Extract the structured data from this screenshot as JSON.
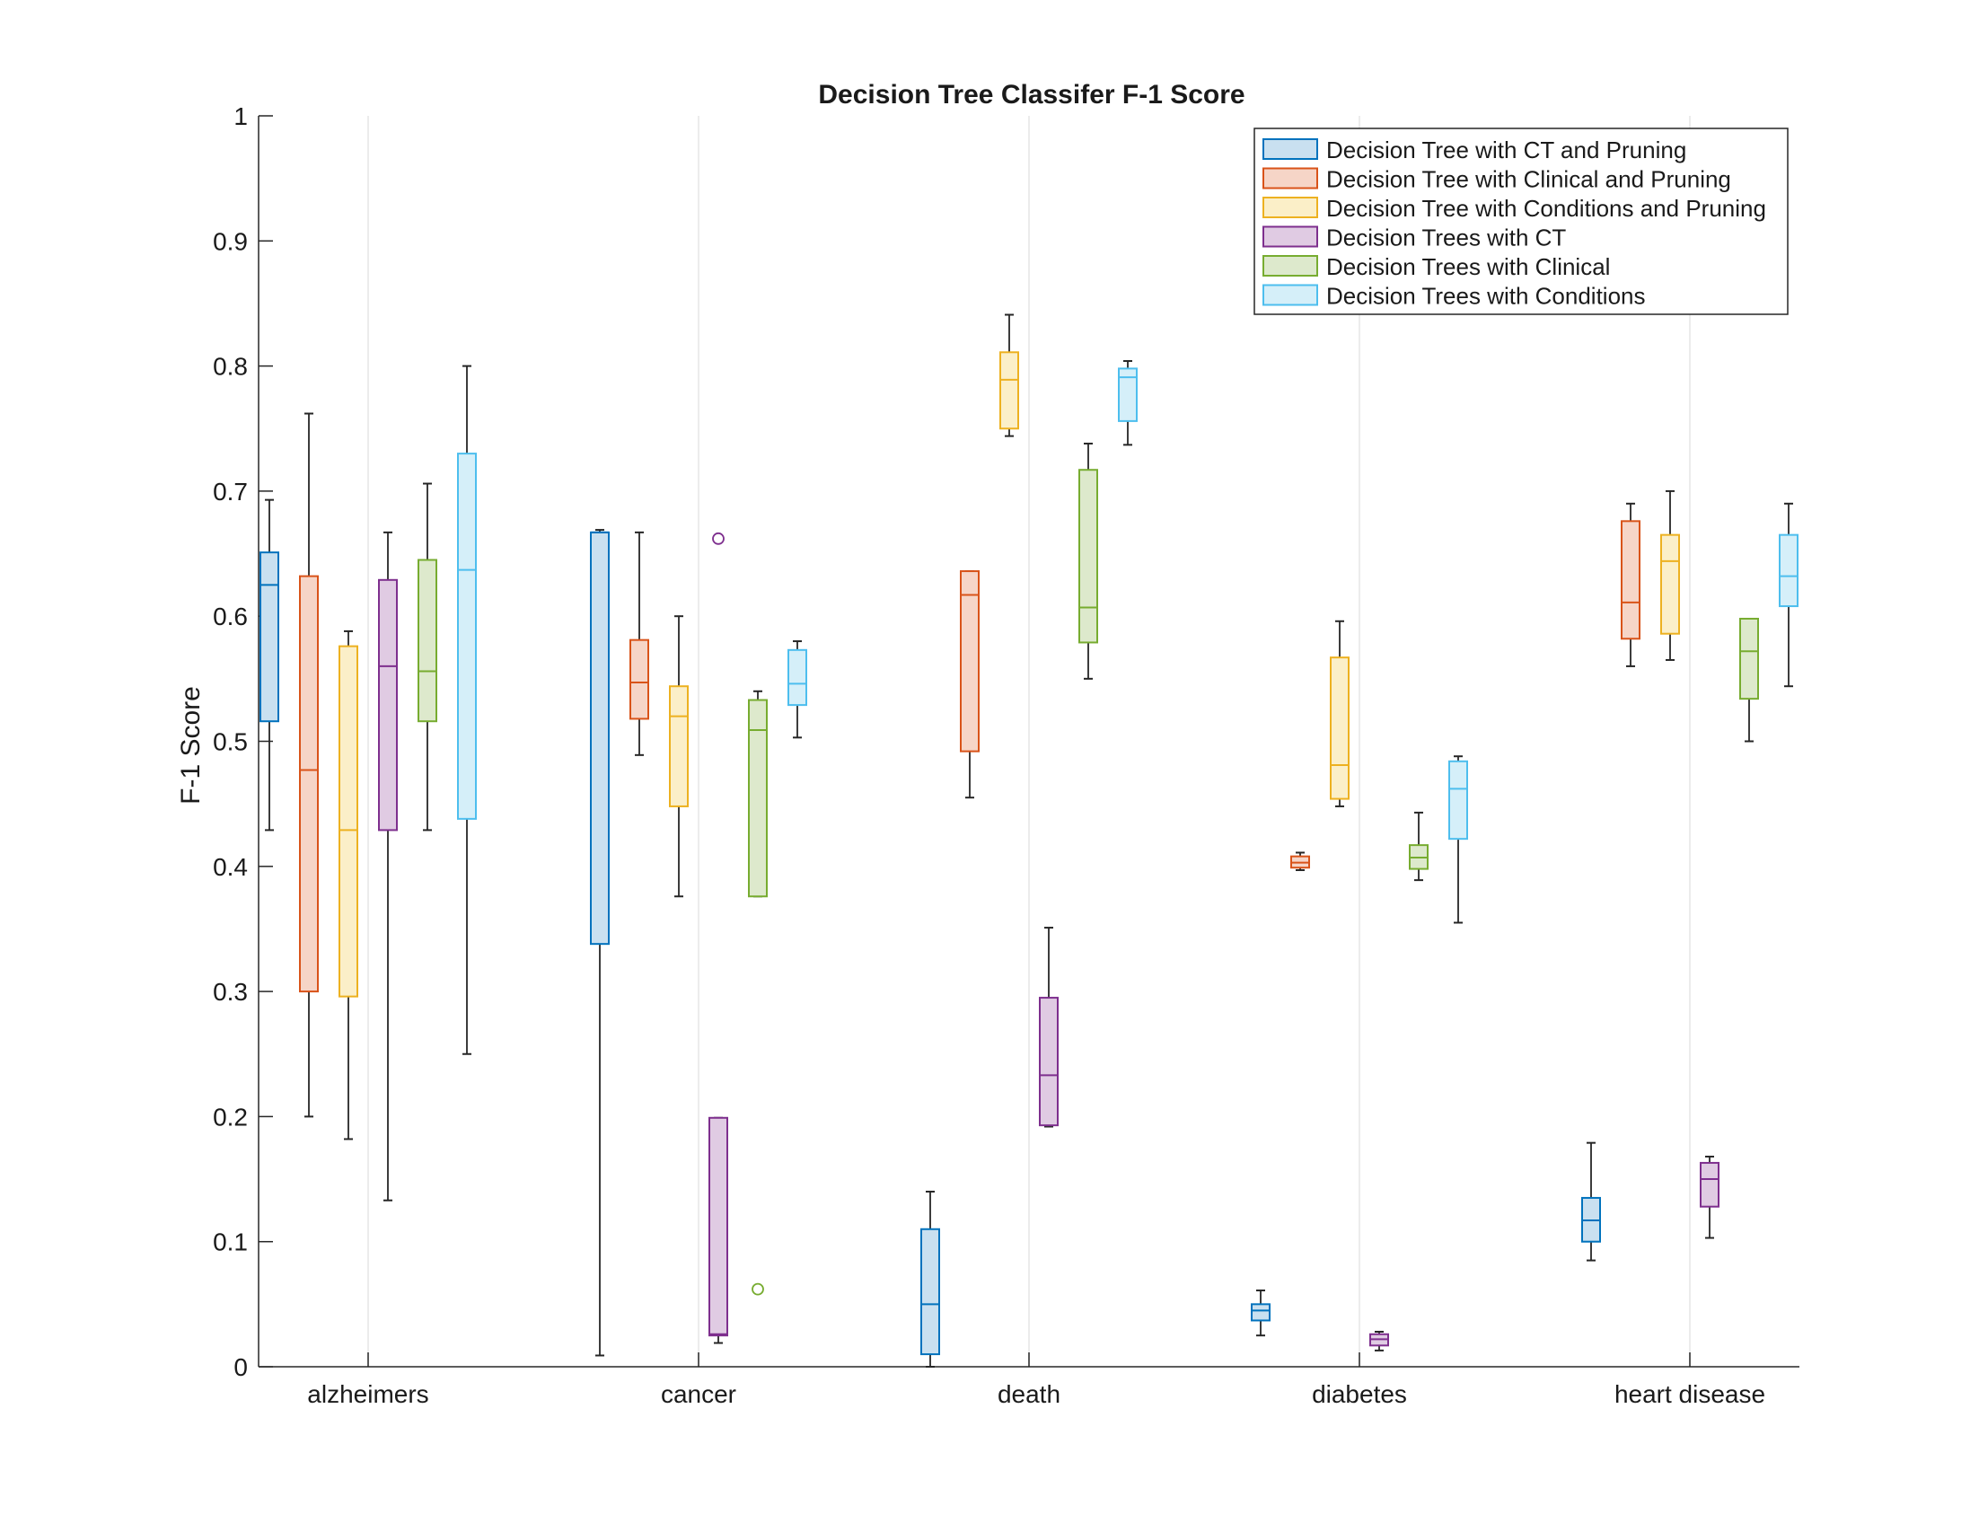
{
  "chart_data": {
    "type": "boxplot",
    "title": "Decision Tree Classifer F-1 Score",
    "xlabel": "",
    "ylabel": "F-1 Score",
    "ylim": [
      0,
      1
    ],
    "yticks": [
      0,
      0.1,
      0.2,
      0.3,
      0.4,
      0.5,
      0.6,
      0.7,
      0.8,
      0.9,
      1
    ],
    "ytick_labels": [
      "0",
      "0.1",
      "0.2",
      "0.3",
      "0.4",
      "0.5",
      "0.6",
      "0.7",
      "0.8",
      "0.9",
      "1"
    ],
    "categories": [
      "alzheimers",
      "cancer",
      "death",
      "diabetes",
      "heart disease"
    ],
    "grid": "vertical",
    "legend_position": "top-right",
    "series": [
      {
        "name": "Decision Tree with CT and Pruning",
        "color": "#0072BD",
        "fill": "#c9e0f0",
        "boxes": [
          {
            "min": 0.429,
            "q1": 0.516,
            "median": 0.625,
            "q3": 0.651,
            "max": 0.693,
            "outliers": []
          },
          {
            "min": 0.009,
            "q1": 0.338,
            "median": 0.667,
            "q3": 0.667,
            "max": 0.669,
            "outliers": []
          },
          {
            "min": 0.0,
            "q1": 0.01,
            "median": 0.05,
            "q3": 0.11,
            "max": 0.14,
            "outliers": []
          },
          {
            "min": 0.025,
            "q1": 0.037,
            "median": 0.045,
            "q3": 0.05,
            "max": 0.061,
            "outliers": []
          },
          {
            "min": 0.085,
            "q1": 0.1,
            "median": 0.117,
            "q3": 0.135,
            "max": 0.179,
            "outliers": []
          }
        ]
      },
      {
        "name": "Decision Tree with Clinical and Pruning",
        "color": "#D95319",
        "fill": "#f6d5c7",
        "boxes": [
          {
            "min": 0.2,
            "q1": 0.3,
            "median": 0.477,
            "q3": 0.632,
            "max": 0.762,
            "outliers": []
          },
          {
            "min": 0.489,
            "q1": 0.518,
            "median": 0.547,
            "q3": 0.581,
            "max": 0.667,
            "outliers": []
          },
          {
            "min": 0.455,
            "q1": 0.492,
            "median": 0.617,
            "q3": 0.636,
            "max": 0.636,
            "outliers": []
          },
          {
            "min": 0.397,
            "q1": 0.399,
            "median": 0.403,
            "q3": 0.408,
            "max": 0.411,
            "outliers": []
          },
          {
            "min": 0.56,
            "q1": 0.582,
            "median": 0.611,
            "q3": 0.676,
            "max": 0.69,
            "outliers": []
          }
        ]
      },
      {
        "name": "Decision Tree with Conditions and Pruning",
        "color": "#EDB120",
        "fill": "#fbefc8",
        "boxes": [
          {
            "min": 0.182,
            "q1": 0.296,
            "median": 0.429,
            "q3": 0.576,
            "max": 0.588,
            "outliers": []
          },
          {
            "min": 0.376,
            "q1": 0.448,
            "median": 0.52,
            "q3": 0.544,
            "max": 0.6,
            "outliers": []
          },
          {
            "min": 0.744,
            "q1": 0.75,
            "median": 0.789,
            "q3": 0.811,
            "max": 0.841,
            "outliers": []
          },
          {
            "min": 0.448,
            "q1": 0.454,
            "median": 0.481,
            "q3": 0.567,
            "max": 0.596,
            "outliers": []
          },
          {
            "min": 0.565,
            "q1": 0.586,
            "median": 0.644,
            "q3": 0.665,
            "max": 0.7,
            "outliers": []
          }
        ]
      },
      {
        "name": "Decision Trees with CT",
        "color": "#7E2F8E",
        "fill": "#e0cbe3",
        "boxes": [
          {
            "min": 0.133,
            "q1": 0.429,
            "median": 0.56,
            "q3": 0.629,
            "max": 0.667,
            "outliers": []
          },
          {
            "min": 0.019,
            "q1": 0.025,
            "median": 0.026,
            "q3": 0.199,
            "max": 0.199,
            "outliers": [
              0.662
            ]
          },
          {
            "min": 0.192,
            "q1": 0.193,
            "median": 0.233,
            "q3": 0.295,
            "max": 0.351,
            "outliers": []
          },
          {
            "min": 0.013,
            "q1": 0.017,
            "median": 0.022,
            "q3": 0.026,
            "max": 0.028,
            "outliers": []
          },
          {
            "min": 0.103,
            "q1": 0.128,
            "median": 0.15,
            "q3": 0.163,
            "max": 0.168,
            "outliers": []
          }
        ]
      },
      {
        "name": "Decision Trees with Clinical",
        "color": "#77AC30",
        "fill": "#dde9cc",
        "boxes": [
          {
            "min": 0.429,
            "q1": 0.516,
            "median": 0.556,
            "q3": 0.645,
            "max": 0.706,
            "outliers": []
          },
          {
            "min": 0.376,
            "q1": 0.376,
            "median": 0.509,
            "q3": 0.533,
            "max": 0.54,
            "outliers": [
              0.062
            ]
          },
          {
            "min": 0.55,
            "q1": 0.579,
            "median": 0.607,
            "q3": 0.717,
            "max": 0.738,
            "outliers": []
          },
          {
            "min": 0.389,
            "q1": 0.398,
            "median": 0.407,
            "q3": 0.417,
            "max": 0.443,
            "outliers": []
          },
          {
            "min": 0.5,
            "q1": 0.534,
            "median": 0.572,
            "q3": 0.598,
            "max": 0.598,
            "outliers": []
          }
        ]
      },
      {
        "name": "Decision Trees with Conditions",
        "color": "#4DBEEE",
        "fill": "#d5eff9",
        "boxes": [
          {
            "min": 0.25,
            "q1": 0.438,
            "median": 0.637,
            "q3": 0.73,
            "max": 0.8,
            "outliers": []
          },
          {
            "min": 0.503,
            "q1": 0.529,
            "median": 0.546,
            "q3": 0.573,
            "max": 0.58,
            "outliers": []
          },
          {
            "min": 0.737,
            "q1": 0.756,
            "median": 0.791,
            "q3": 0.798,
            "max": 0.804,
            "outliers": []
          },
          {
            "min": 0.355,
            "q1": 0.422,
            "median": 0.462,
            "q3": 0.484,
            "max": 0.488,
            "outliers": []
          },
          {
            "min": 0.544,
            "q1": 0.608,
            "median": 0.632,
            "q3": 0.665,
            "max": 0.69,
            "outliers": []
          }
        ]
      }
    ]
  }
}
